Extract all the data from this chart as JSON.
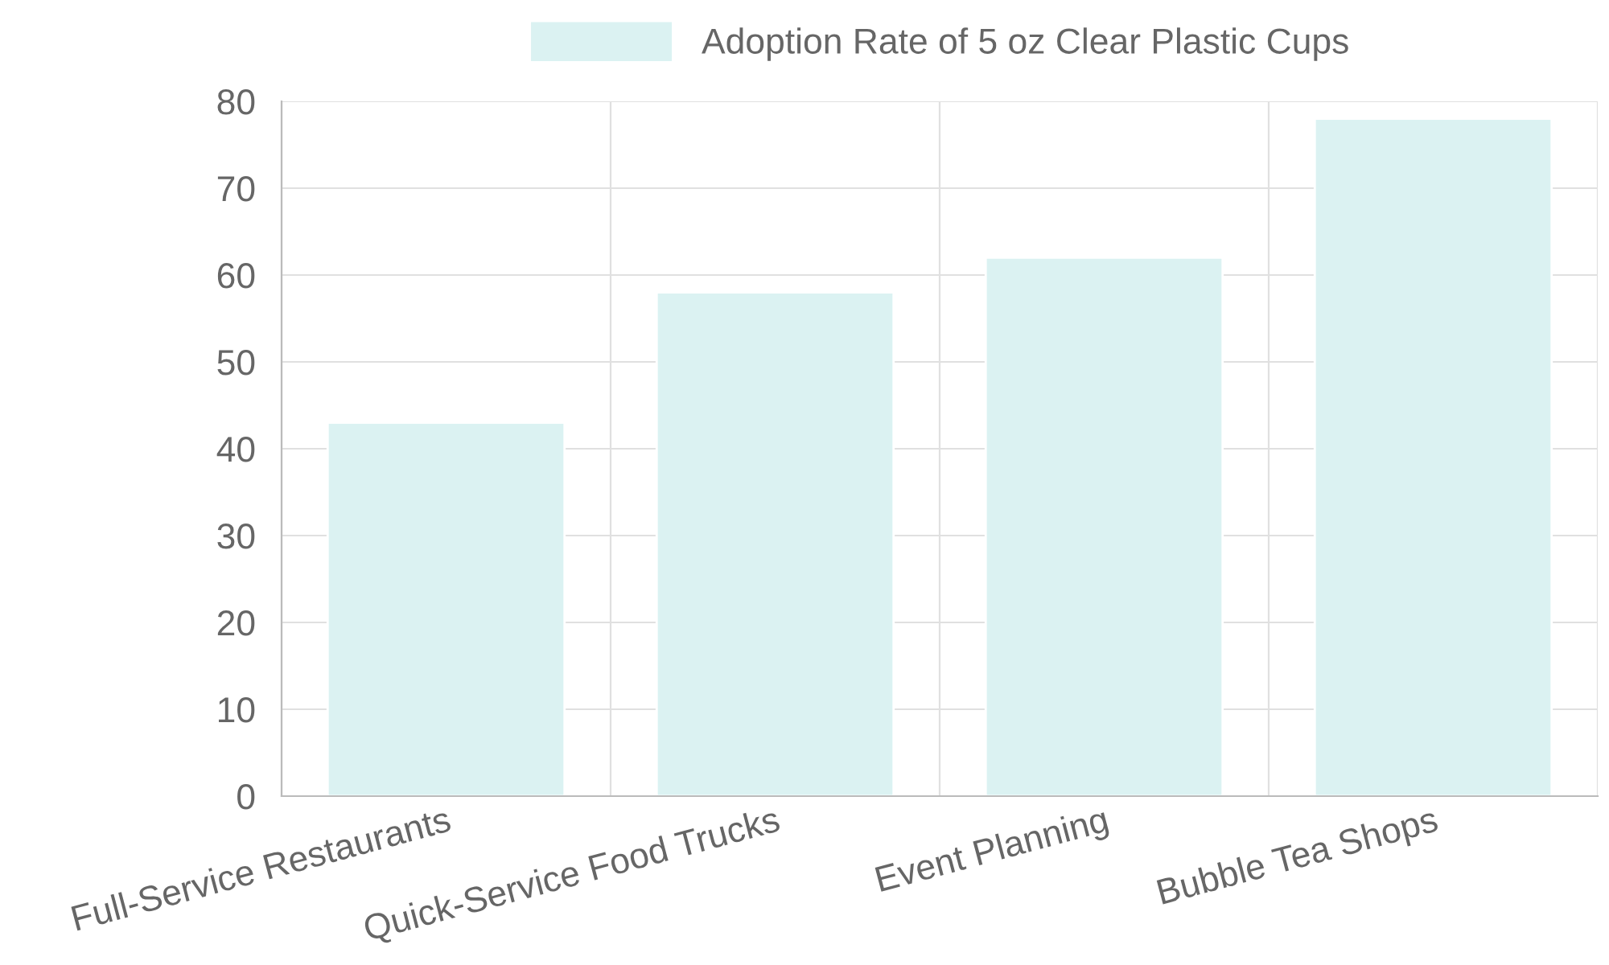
{
  "chart_data": {
    "type": "bar",
    "categories": [
      "Full-Service Restaurants",
      "Quick-Service Food Trucks",
      "Event Planning",
      "Bubble Tea Shops"
    ],
    "series": [
      {
        "name": "Adoption Rate of 5 oz Clear Plastic Cups",
        "color": "#dbf2f2",
        "values": [
          43,
          58,
          62,
          78
        ]
      }
    ],
    "ylim": [
      0,
      80
    ],
    "yticks": [
      0,
      10,
      20,
      30,
      40,
      50,
      60,
      70,
      80
    ],
    "grid": true,
    "legend": "top"
  }
}
